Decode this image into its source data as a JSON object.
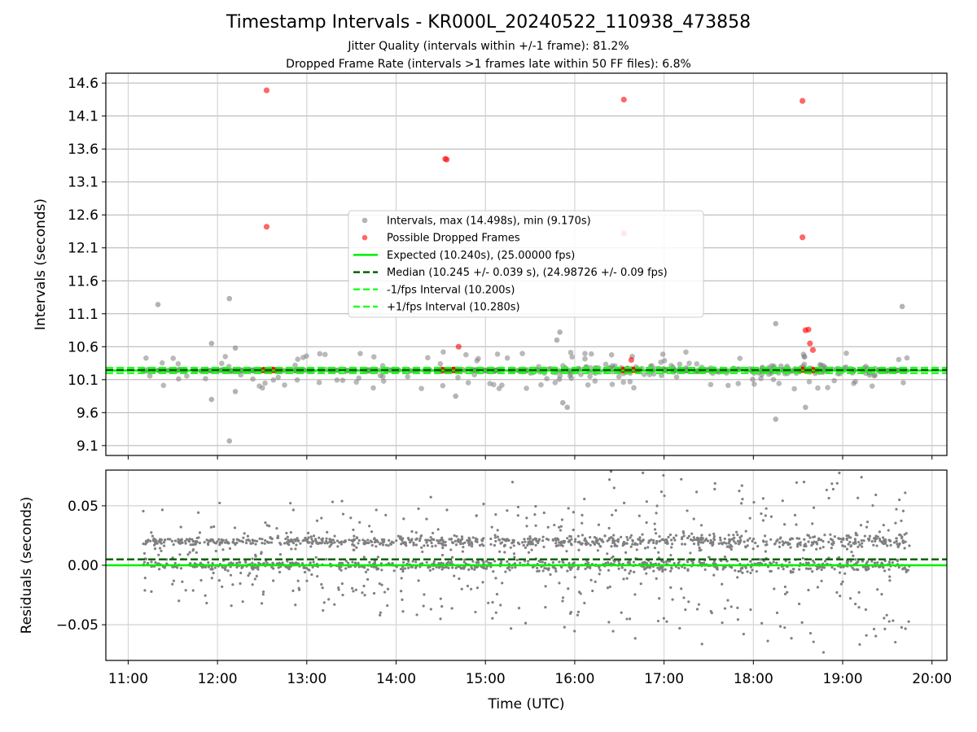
{
  "chart_data": [
    {
      "type": "scatter",
      "title": "Timestamp Intervals - KR000L_20240522_110938_473858",
      "subtitle_lines": [
        "Jitter Quality (intervals within +/-1 frame): 81.2%",
        "Dropped Frame Rate (intervals >1 frames late within 50 FF files): 6.8%"
      ],
      "xlabel": "",
      "ylabel": "Intervals (seconds)",
      "xlim": [
        "10:45",
        "20:10"
      ],
      "ylim": [
        8.95,
        14.75
      ],
      "y_ticks": [
        "9.1",
        "9.6",
        "10.1",
        "10.6",
        "11.1",
        "11.6",
        "12.1",
        "12.6",
        "13.1",
        "13.6",
        "14.1",
        "14.6"
      ],
      "grid": true,
      "legend_position": "center",
      "legend": [
        "Intervals, max (14.498s), min (9.170s)",
        "Possible Dropped Frames",
        "Expected (10.240s), (25.00000 fps)",
        "Median (10.245 +/- 0.039 s), (24.98726 +/- 0.09 fps)",
        "-1/fps Interval (10.200s)",
        "+1/fps Interval (10.280s)"
      ],
      "expected_interval": 10.24,
      "median_interval": 10.245,
      "minus_1fps_interval": 10.2,
      "plus_1fps_interval": 10.28,
      "colors": {
        "intervals": "#808080",
        "dropped": "#ff0000",
        "expected": "#00ee00",
        "median": "#006400",
        "fps_bounds": "#22ff22"
      },
      "series": [
        {
          "name": "Intervals, max (14.498s), min (9.170s)",
          "points": [
            [
              "11:20",
              11.24
            ],
            [
              "11:56",
              10.65
            ],
            [
              "11:56",
              9.8
            ],
            [
              "12:08",
              11.33
            ],
            [
              "12:08",
              9.17
            ],
            [
              "12:12",
              10.58
            ],
            [
              "12:12",
              9.92
            ],
            [
              "14:40",
              9.85
            ],
            [
              "15:48",
              10.7
            ],
            [
              "15:50",
              10.82
            ],
            [
              "15:52",
              9.75
            ],
            [
              "15:55",
              9.68
            ],
            [
              "18:15",
              10.95
            ],
            [
              "18:15",
              9.5
            ],
            [
              "18:35",
              9.68
            ],
            [
              "19:40",
              11.21
            ]
          ],
          "baseline_band_center": 10.24,
          "baseline_time_range": [
            "11:10",
            "19:45"
          ]
        },
        {
          "name": "Possible Dropped Frames",
          "points": [
            [
              "12:33",
              14.49
            ],
            [
              "12:33",
              12.42
            ],
            [
              "14:33",
              13.45
            ],
            [
              "14:34",
              13.44
            ],
            [
              "14:42",
              10.6
            ],
            [
              "16:33",
              14.35
            ],
            [
              "16:33",
              12.32
            ],
            [
              "16:38",
              10.4
            ],
            [
              "18:33",
              14.33
            ],
            [
              "18:33",
              12.26
            ],
            [
              "18:35",
              10.85
            ],
            [
              "18:37",
              10.86
            ],
            [
              "18:38",
              10.65
            ],
            [
              "18:40",
              10.55
            ]
          ],
          "cluster_value": 10.25,
          "cluster_time_ranges": [
            [
              "12:30",
              "12:42"
            ],
            [
              "14:30",
              "14:42"
            ],
            [
              "16:31",
              "16:43"
            ],
            [
              "18:31",
              "18:43"
            ]
          ]
        }
      ]
    },
    {
      "type": "scatter",
      "xlabel": "Time (UTC)",
      "ylabel": "Residuals (seconds)",
      "xlim": [
        "10:45",
        "20:10"
      ],
      "ylim": [
        -0.08,
        0.08
      ],
      "x_ticks": [
        "11:00",
        "12:00",
        "13:00",
        "14:00",
        "15:00",
        "16:00",
        "17:00",
        "18:00",
        "19:00",
        "20:00"
      ],
      "y_ticks": [
        "−0.05",
        "0.00",
        "0.05"
      ],
      "y_tick_values": [
        -0.05,
        0.0,
        0.05
      ],
      "grid": true,
      "reference_lines": {
        "expected": 0.0,
        "median": 0.005
      },
      "colors": {
        "points": "#808080",
        "expected": "#00ee00",
        "median": "#006400"
      },
      "series": [
        {
          "name": "Residuals",
          "time_range": [
            "11:10",
            "19:45"
          ],
          "main_bands": [
            0.02,
            0.0
          ],
          "band_spread": 0.004,
          "value_range": [
            -0.08,
            0.08
          ]
        }
      ]
    }
  ]
}
